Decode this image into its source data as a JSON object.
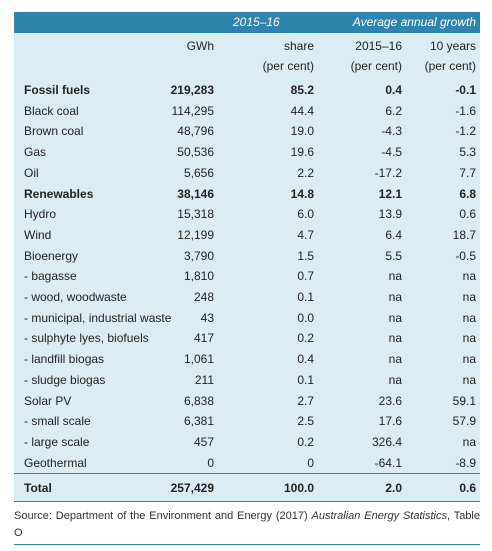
{
  "header": {
    "group1": "2015–16",
    "group2": "Average annual growth"
  },
  "subheader": {
    "unit_row": [
      "",
      "GWh",
      "share",
      "2015–16",
      "10 years"
    ],
    "percent_row": [
      "",
      "",
      "(per cent)",
      "(per cent)",
      "(per cent)"
    ]
  },
  "rows": [
    {
      "label": "Fossil fuels",
      "gwh": "219,283",
      "share": "85.2",
      "g1516": "0.4",
      "g10": "-0.1",
      "bold": true
    },
    {
      "label": "Black coal",
      "gwh": "114,295",
      "share": "44.4",
      "g1516": "6.2",
      "g10": "-1.6"
    },
    {
      "label": "Brown coal",
      "gwh": "48,796",
      "share": "19.0",
      "g1516": "-4.3",
      "g10": "-1.2"
    },
    {
      "label": "Gas",
      "gwh": "50,536",
      "share": "19.6",
      "g1516": "-4.5",
      "g10": "5.3"
    },
    {
      "label": "Oil",
      "gwh": "5,656",
      "share": "2.2",
      "g1516": "-17.2",
      "g10": "7.7"
    },
    {
      "label": "Renewables",
      "gwh": "38,146",
      "share": "14.8",
      "g1516": "12.1",
      "g10": "6.8",
      "bold": true
    },
    {
      "label": "Hydro",
      "gwh": "15,318",
      "share": "6.0",
      "g1516": "13.9",
      "g10": "0.6"
    },
    {
      "label": "Wind",
      "gwh": "12,199",
      "share": "4.7",
      "g1516": "6.4",
      "g10": "18.7"
    },
    {
      "label": "Bioenergy",
      "gwh": "3,790",
      "share": "1.5",
      "g1516": "5.5",
      "g10": "-0.5"
    },
    {
      "label": " - bagasse",
      "gwh": "1,810",
      "share": "0.7",
      "g1516": "na",
      "g10": "na"
    },
    {
      "label": " - wood, woodwaste",
      "gwh": "248",
      "share": "0.1",
      "g1516": "na",
      "g10": "na"
    },
    {
      "label": " - municipal, industrial waste",
      "gwh": "43",
      "share": "0.0",
      "g1516": "na",
      "g10": "na"
    },
    {
      "label": " - sulphyte lyes, biofuels",
      "gwh": "417",
      "share": "0.2",
      "g1516": "na",
      "g10": "na"
    },
    {
      "label": " - landfill biogas",
      "gwh": "1,061",
      "share": "0.4",
      "g1516": "na",
      "g10": "na"
    },
    {
      "label": " - sludge biogas",
      "gwh": "211",
      "share": "0.1",
      "g1516": "na",
      "g10": "na"
    },
    {
      "label": "Solar PV",
      "gwh": "6,838",
      "share": "2.7",
      "g1516": "23.6",
      "g10": "59.1"
    },
    {
      "label": " - small scale",
      "gwh": "6,381",
      "share": "2.5",
      "g1516": "17.6",
      "g10": "57.9"
    },
    {
      "label": " - large scale",
      "gwh": "457",
      "share": "0.2",
      "g1516": "326.4",
      "g10": "na"
    },
    {
      "label": "Geothermal",
      "gwh": "0",
      "share": "0",
      "g1516": "-64.1",
      "g10": "-8.9"
    }
  ],
  "total": {
    "label": "Total",
    "gwh": "257,429",
    "share": "100.0",
    "g1516": "2.0",
    "g10": "0.6"
  },
  "source": {
    "prefix": "Source: Department of the Environment and Energy (2017) ",
    "title": "Australian Energy Statistics",
    "suffix": ", Table O"
  },
  "colors": {
    "header_bg": "#2e84ab",
    "table_bg": "#dcecf5"
  }
}
